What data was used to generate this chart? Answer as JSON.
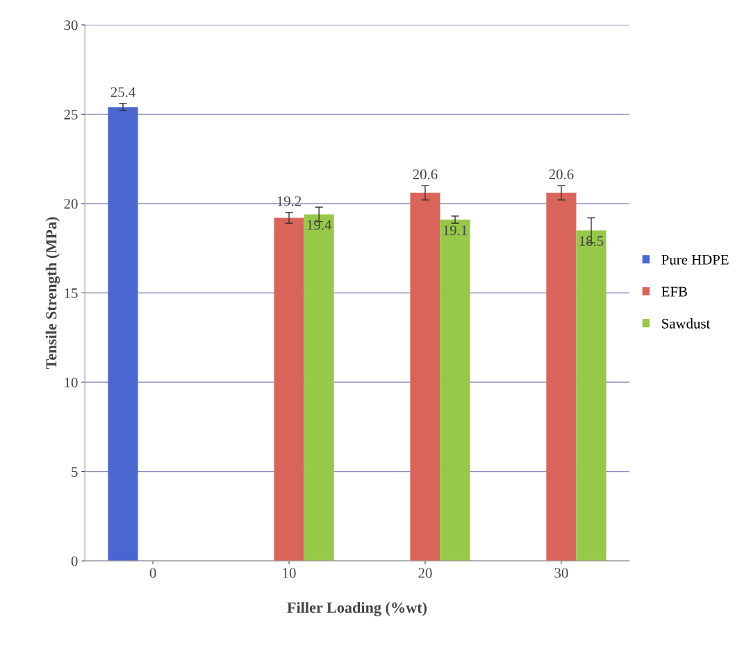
{
  "chart_data": {
    "type": "bar",
    "xlabel": "Filler Loading (%wt)",
    "ylabel": "Tensile Strength (MPa)",
    "categories": [
      "0",
      "10",
      "20",
      "30"
    ],
    "series": [
      {
        "name": "Pure HDPE",
        "color": "#4a66d0",
        "values": [
          25.4,
          null,
          null,
          null
        ],
        "errors": [
          0.2,
          null,
          null,
          null
        ]
      },
      {
        "name": "EFB",
        "color": "#d9645a",
        "values": [
          null,
          19.2,
          20.6,
          20.6
        ],
        "errors": [
          null,
          0.3,
          0.4,
          0.4
        ]
      },
      {
        "name": "Sawdust",
        "color": "#98c84a",
        "values": [
          null,
          19.4,
          19.1,
          18.5
        ],
        "errors": [
          null,
          0.4,
          0.2,
          0.7
        ]
      }
    ],
    "ylim": [
      0,
      30
    ],
    "yticks": [
      0,
      5,
      10,
      15,
      20,
      25,
      30
    ],
    "grid": "y",
    "legend": "right",
    "data_labels": true
  }
}
